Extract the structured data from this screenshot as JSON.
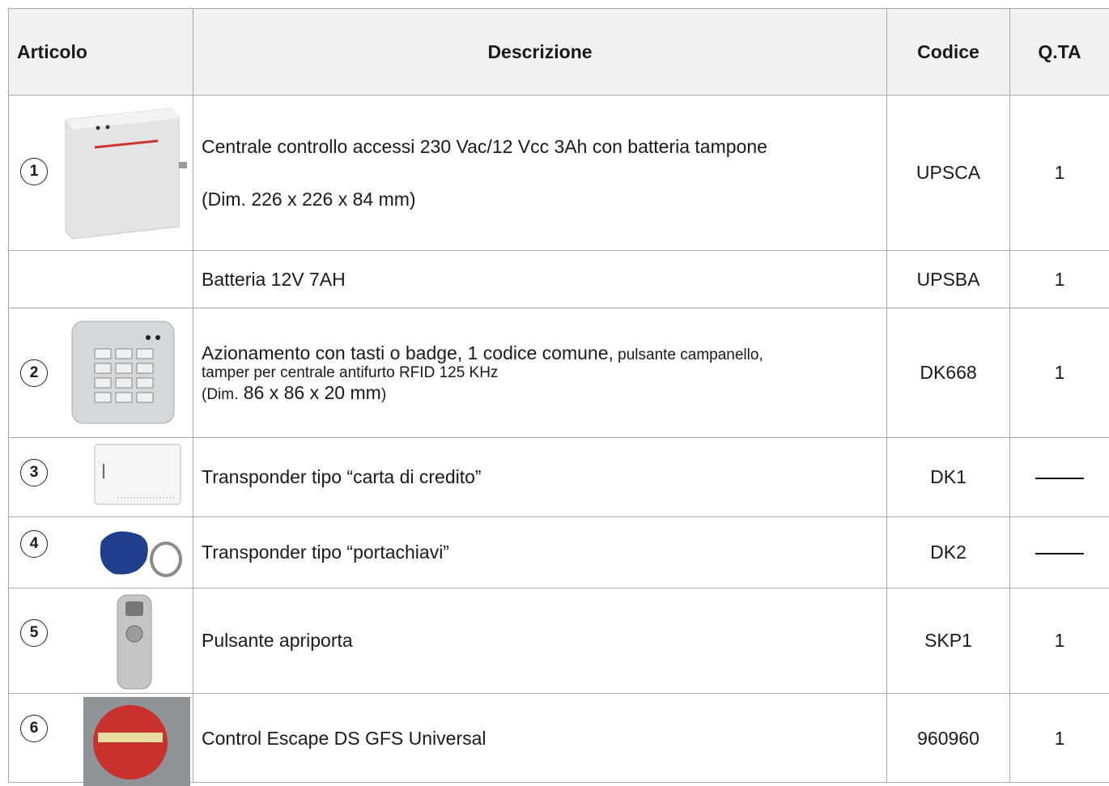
{
  "table": {
    "header": [
      "Articolo",
      "Descrizione",
      "Codice",
      "Q.TA"
    ],
    "rows": [
      {
        "number": "1",
        "description": [
          [
            "Centrale controllo accessi 230 Vac/12 Vcc 3Ah con batteria tampone"
          ],
          [
            "(Dim. 226 x 226 x 84 mm)"
          ]
        ],
        "code": "UPSCA",
        "qty": "1"
      },
      {
        "description": [
          [
            "Batteria 12V 7AH"
          ]
        ],
        "code": "UPSBA",
        "qty": "1"
      },
      {
        "number": "2",
        "description": [
          [
            "Azionamento con tasti o badge, 1 codice comune,",
            " pulsante campanello,"
          ],
          [
            "tamper per centrale antifurto RFID 125 KHz"
          ],
          [
            "(Dim.",
            " 86 x 86 x 20 mm",
            ")"
          ]
        ],
        "code": "DK668",
        "qty": "1"
      },
      {
        "number": "3",
        "description": [
          [
            "Transponder tipo “carta di credito”"
          ]
        ],
        "code": "DK1"
      },
      {
        "number": "4",
        "description": [
          [
            "Transponder tipo “portachiavi”"
          ]
        ],
        "code": "DK2"
      },
      {
        "number": "5",
        "description": [
          [
            "Pulsante apriporta"
          ]
        ],
        "code": "SKP1",
        "qty": "1"
      },
      {
        "number": "6",
        "description": [
          [
            "Control Escape DS GFS Universal"
          ]
        ],
        "code": "960960",
        "qty": "1"
      }
    ]
  }
}
